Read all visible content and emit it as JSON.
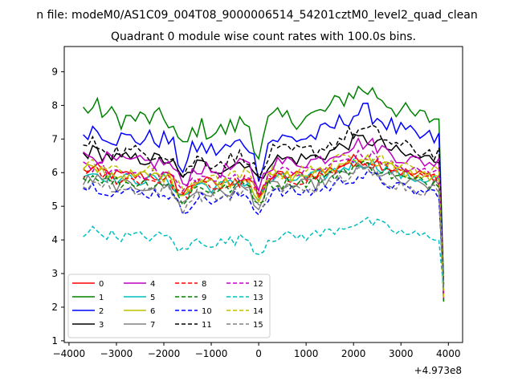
{
  "figure": {
    "suptitle": "n file: modeM0/AS1C09_004T08_9000006514_54201cztM0_level2_quad_clean",
    "title": "Quadrant 0 module wise count rates with 100.0s bins.",
    "x_offset_text": "+4.973e8"
  },
  "chart_data": {
    "type": "line",
    "title": "Quadrant 0 module wise count rates with 100.0s bins.",
    "xlabel": "",
    "ylabel": "",
    "xlim": [
      -4100,
      4300
    ],
    "ylim": [
      0.95,
      9.75
    ],
    "x_offset": 497300000,
    "xticks": [
      -4000,
      -3000,
      -2000,
      -1000,
      0,
      1000,
      2000,
      3000,
      4000
    ],
    "xtick_labels": [
      "−4000",
      "−3000",
      "−2000",
      "−1000",
      "0",
      "1000",
      "2000",
      "3000",
      "4000"
    ],
    "yticks": [
      1,
      2,
      3,
      4,
      5,
      6,
      7,
      8,
      9
    ],
    "ytick_labels": [
      "1",
      "2",
      "3",
      "4",
      "5",
      "6",
      "7",
      "8",
      "9"
    ],
    "grid": false,
    "legend_position": "lower-left",
    "legend_columns": 4,
    "series": [
      {
        "name": "0",
        "color": "#ff0000",
        "dashed": false,
        "base": 5.9,
        "amp": 0.35
      },
      {
        "name": "1",
        "color": "#008000",
        "dashed": false,
        "base": 7.6,
        "amp": 0.6
      },
      {
        "name": "2",
        "color": "#0000ff",
        "dashed": false,
        "base": 7.0,
        "amp": 0.55
      },
      {
        "name": "3",
        "color": "#000000",
        "dashed": false,
        "base": 6.4,
        "amp": 0.4
      },
      {
        "name": "4",
        "color": "#bf00bf",
        "dashed": false,
        "base": 6.3,
        "amp": 0.4
      },
      {
        "name": "5",
        "color": "#00bfbf",
        "dashed": false,
        "base": 5.8,
        "amp": 0.35
      },
      {
        "name": "6",
        "color": "#bfbf00",
        "dashed": false,
        "base": 5.9,
        "amp": 0.35
      },
      {
        "name": "7",
        "color": "#808080",
        "dashed": false,
        "base": 5.6,
        "amp": 0.35
      },
      {
        "name": "8",
        "color": "#ff0000",
        "dashed": true,
        "base": 5.8,
        "amp": 0.35
      },
      {
        "name": "9",
        "color": "#008000",
        "dashed": true,
        "base": 5.7,
        "amp": 0.35
      },
      {
        "name": "10",
        "color": "#0000ff",
        "dashed": true,
        "base": 5.4,
        "amp": 0.35
      },
      {
        "name": "11",
        "color": "#000000",
        "dashed": true,
        "base": 6.6,
        "amp": 0.45
      },
      {
        "name": "12",
        "color": "#bf00bf",
        "dashed": true,
        "base": 6.0,
        "amp": 0.35
      },
      {
        "name": "13",
        "color": "#00bfbf",
        "dashed": true,
        "base": 4.1,
        "amp": 0.3
      },
      {
        "name": "14",
        "color": "#bfbf00",
        "dashed": true,
        "base": 6.0,
        "amp": 0.4
      },
      {
        "name": "15",
        "color": "#808080",
        "dashed": true,
        "base": 5.5,
        "amp": 0.35
      }
    ]
  }
}
